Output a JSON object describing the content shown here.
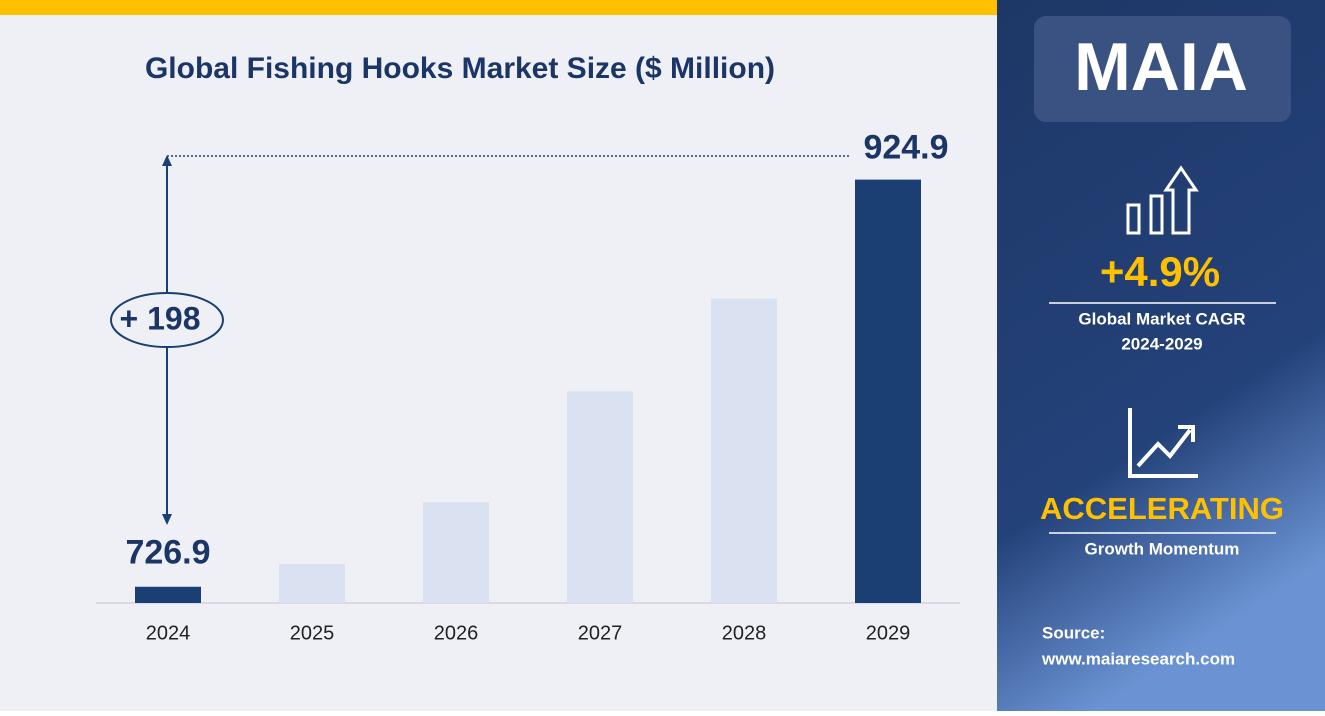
{
  "chart_data": {
    "type": "bar",
    "title": "Global Fishing Hooks Market Size ($ Million)",
    "categories": [
      "2024",
      "2025",
      "2026",
      "2027",
      "2028",
      "2029"
    ],
    "values": [
      726.9,
      738,
      768,
      822,
      867,
      924.9
    ],
    "colors": [
      "#1b3f72",
      "#dae2f2",
      "#dae2f2",
      "#dae2f2",
      "#dae2f2",
      "#1b3f72"
    ],
    "labeled": [
      0,
      5
    ],
    "annotation": "+ 198",
    "ylim": [
      719,
      950
    ]
  },
  "sidebar": {
    "logo": "MAIA",
    "cagr": "+4.9%",
    "cagr_label": "Global Market CAGR",
    "cagr_period": "2024-2029",
    "momentum": "ACCELERATING",
    "momentum_label": "Growth Momentum",
    "source_label": "Source:",
    "source": "www.maiaresearch.com"
  }
}
